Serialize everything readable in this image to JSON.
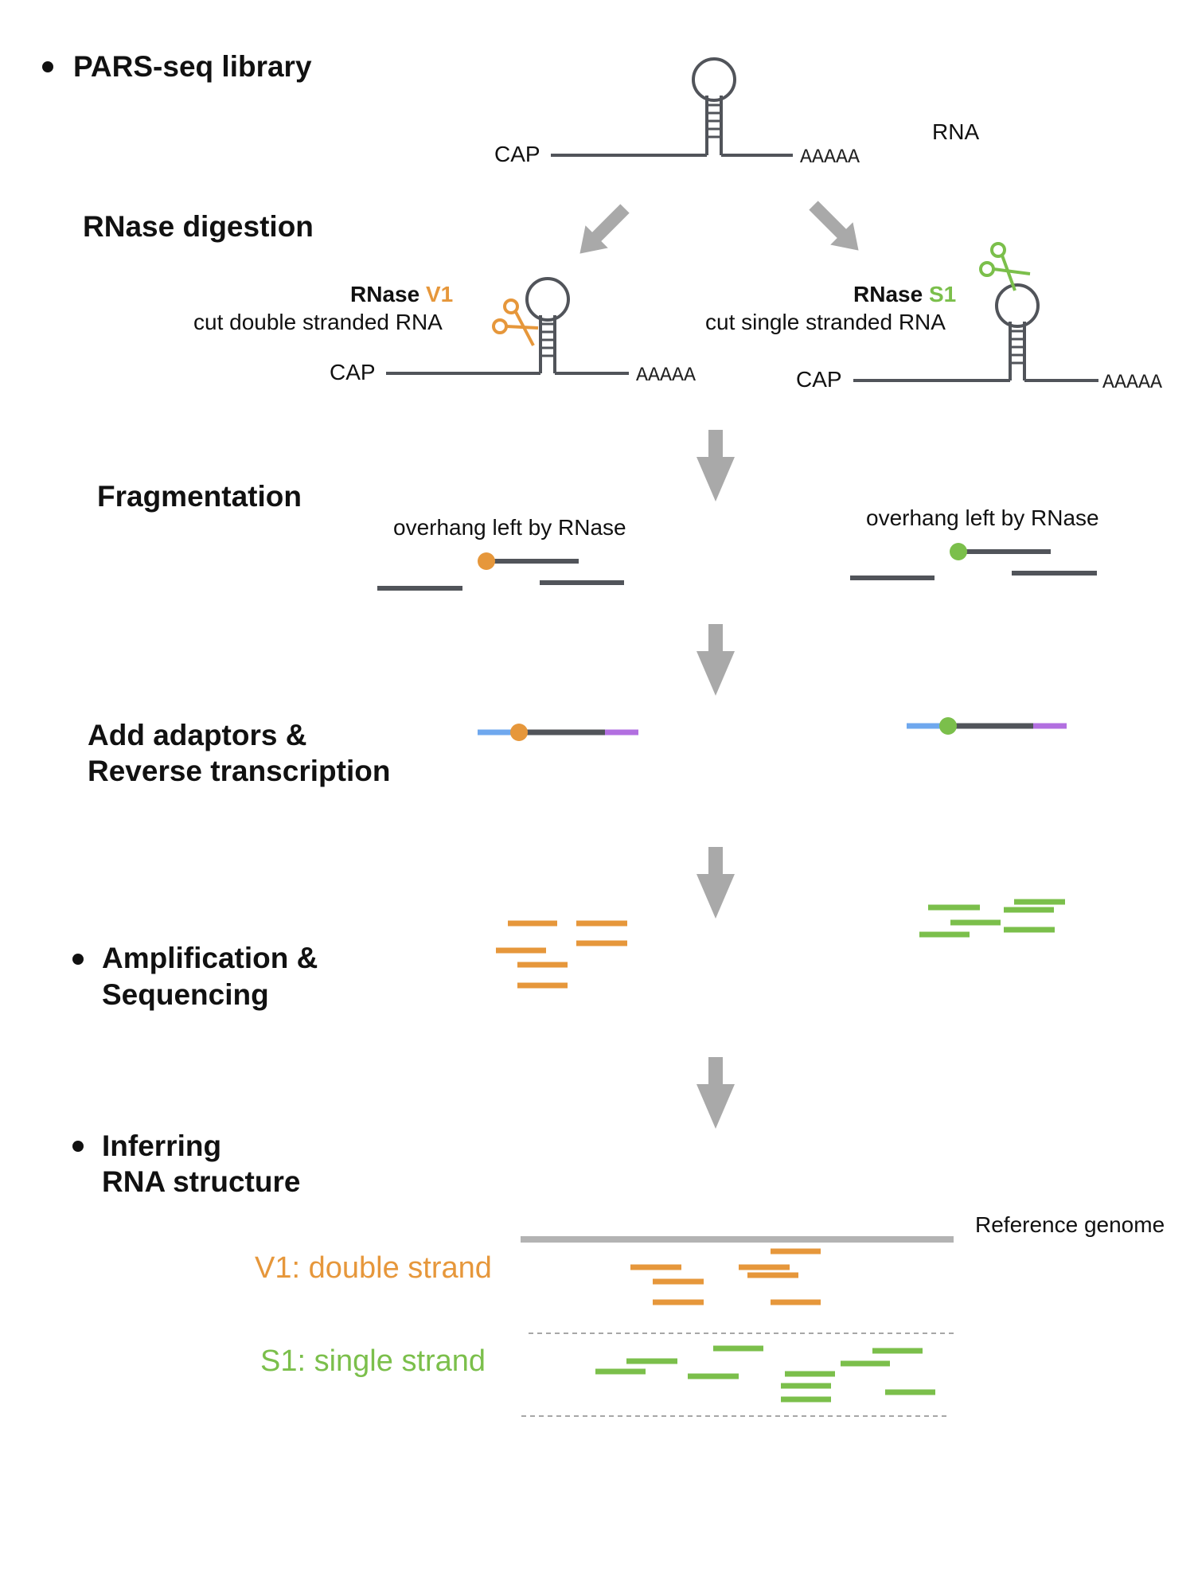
{
  "colors": {
    "strand": "#51545a",
    "arrow": "#a9a9a9",
    "orange": "#e6973b",
    "green": "#7bbf4b",
    "blue": "#6fa8ee",
    "purple": "#b26fe0",
    "reference": "#b3b3b3",
    "dashed": "#a7a7a7"
  },
  "steps": {
    "library": "PARS-seq library",
    "digestion": "RNase digestion",
    "fragmentation": "Fragmentation",
    "adaptors_line1": "Add adaptors &",
    "adaptors_line2": "Reverse transcription",
    "amplification_line1": "Amplification &",
    "amplification_line2": "Sequencing",
    "inferring_line1": "Inferring",
    "inferring_line2": "RNA structure"
  },
  "rna": {
    "cap": "CAP",
    "polya": "AAAAA",
    "label": "RNA"
  },
  "v1": {
    "enzyme": "RNase ",
    "enzyme_tag": "V1",
    "description": "cut double stranded RNA",
    "overhang": "overhang left by RNase",
    "result": "V1: double strand"
  },
  "s1": {
    "enzyme": "RNase ",
    "enzyme_tag": "S1",
    "description": "cut single stranded RNA",
    "overhang": "overhang left by RNase",
    "result": "S1: single strand"
  },
  "reference": {
    "label": "Reference genome"
  },
  "icons": {
    "scissors_v1": "scissors-icon",
    "scissors_s1": "scissors-icon",
    "down_arrow": "down-arrow-icon",
    "bullet": "bullet-icon"
  }
}
